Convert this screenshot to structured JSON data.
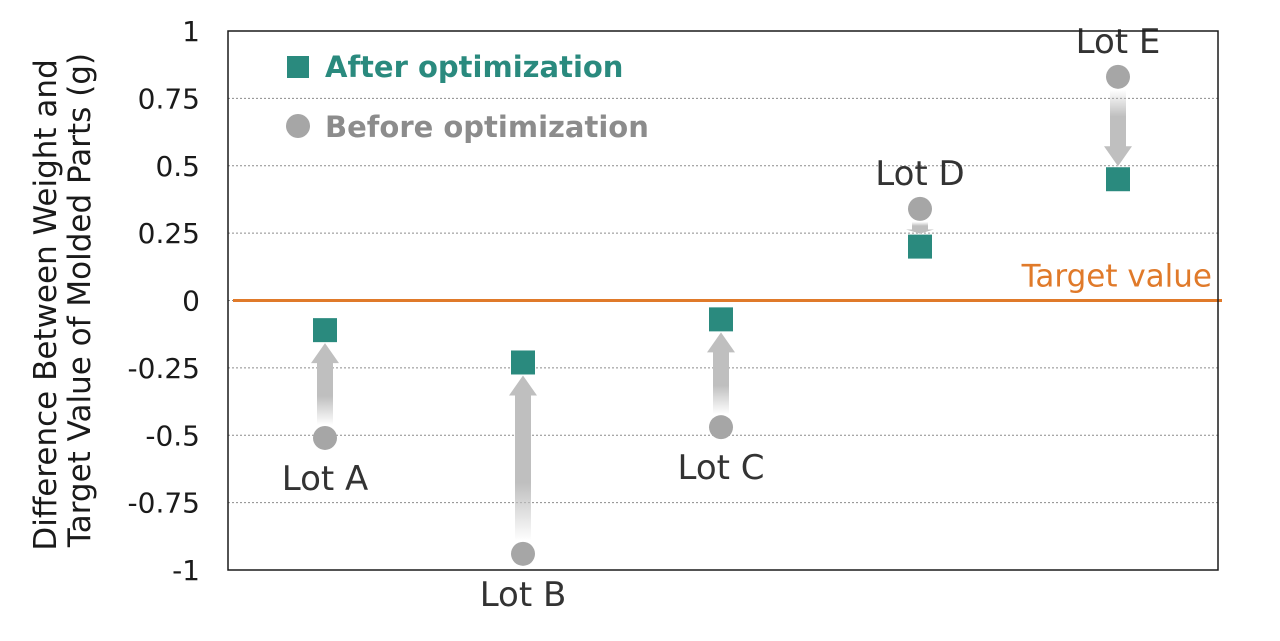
{
  "chart_data": {
    "type": "scatter",
    "title": "",
    "xlabel": "",
    "ylabel_lines": [
      "Difference Between Weight and",
      "Target Value of Molded Parts (g)"
    ],
    "ylim": [
      -1,
      1
    ],
    "yticks": [
      1,
      0.75,
      0.5,
      0.25,
      0,
      -0.25,
      -0.5,
      -0.75,
      -1
    ],
    "ytick_labels": [
      "1",
      "0.75",
      "0.5",
      "0.25",
      "0",
      "-0.25",
      "-0.5",
      "-0.75",
      "-1"
    ],
    "grid": true,
    "categories": [
      "Lot A",
      "Lot B",
      "Lot C",
      "Lot D",
      "Lot E"
    ],
    "series": [
      {
        "name": "After optimization",
        "marker": "square",
        "color": "#2a8a7e",
        "values": [
          -0.11,
          -0.23,
          -0.07,
          0.2,
          0.45
        ]
      },
      {
        "name": "Before optimization",
        "marker": "circle",
        "color": "#a6a6a6",
        "values": [
          -0.51,
          -0.94,
          -0.47,
          0.34,
          0.83
        ]
      }
    ],
    "target_line": {
      "value": 0,
      "label": "Target value",
      "color": "#e07a2a"
    },
    "legend": {
      "placement": "top-left"
    },
    "arrows": "before-to-after"
  }
}
